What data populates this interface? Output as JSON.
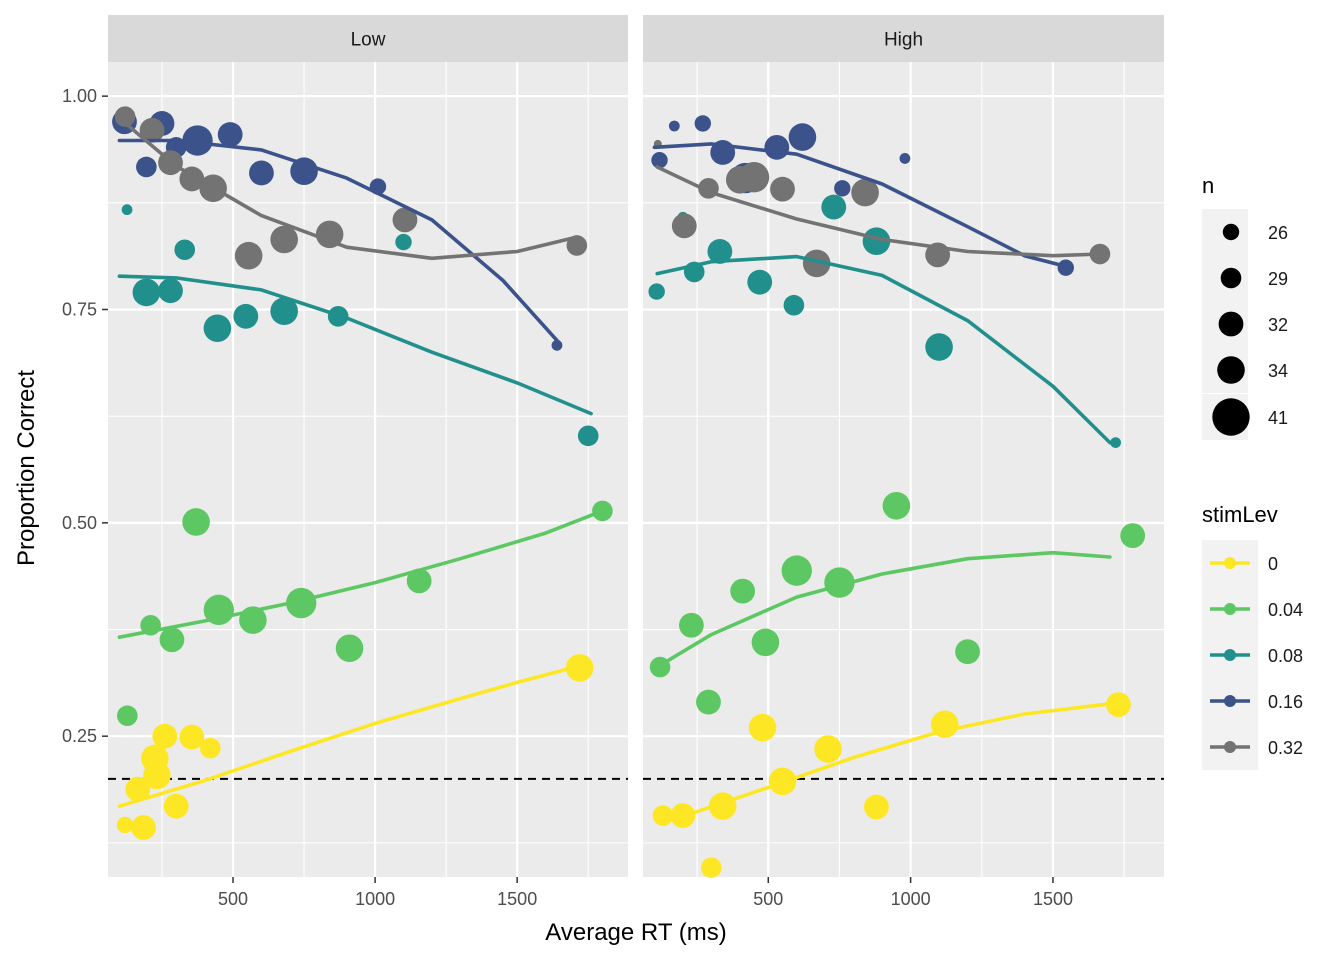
{
  "chart_data": {
    "type": "scatter",
    "xlabel": "Average RT (ms)",
    "ylabel": "Proportion Correct",
    "xlim": [
      60,
      1890
    ],
    "ylim": [
      0.085,
      1.04
    ],
    "x_ticks": [
      500,
      1000,
      1500
    ],
    "x_tick_labels": [
      "500",
      "1000",
      "1500"
    ],
    "y_ticks": [
      0.25,
      0.5,
      0.75,
      1.0
    ],
    "y_tick_labels": [
      "0.25",
      "0.50",
      "0.75",
      "1.00"
    ],
    "grid": true,
    "reference_line": {
      "y": 0.2,
      "style": "dashed",
      "color": "#000000"
    },
    "legend_placement": "right",
    "size_legend": {
      "title": "n",
      "entries": [
        {
          "label": "26",
          "value": 26
        },
        {
          "label": "29",
          "value": 29
        },
        {
          "label": "32",
          "value": 32
        },
        {
          "label": "34",
          "value": 34
        },
        {
          "label": "41",
          "value": 41
        }
      ]
    },
    "color_legend": {
      "title": "stimLev",
      "entries": [
        {
          "label": "0",
          "color": "#FDE725"
        },
        {
          "label": "0.04",
          "color": "#5DC863"
        },
        {
          "label": "0.08",
          "color": "#21908C"
        },
        {
          "label": "0.16",
          "color": "#3B528B"
        },
        {
          "label": "0.32",
          "color": "#737373"
        }
      ]
    },
    "panels": [
      {
        "label": "Low",
        "series": [
          {
            "name": "0",
            "color": "#FDE725",
            "points": [
              [
                120,
                0.146,
                26
              ],
              [
                165,
                0.188,
                32
              ],
              [
                185,
                0.143,
                32
              ],
              [
                225,
                0.224,
                34
              ],
              [
                232,
                0.204,
                34
              ],
              [
                260,
                0.25,
                32
              ],
              [
                300,
                0.168,
                32
              ],
              [
                355,
                0.249,
                32
              ],
              [
                420,
                0.236,
                29
              ],
              [
                1720,
                0.33,
                34
              ]
            ],
            "curve": [
              [
                100,
                0.168
              ],
              [
                400,
                0.198
              ],
              [
                700,
                0.232
              ],
              [
                1000,
                0.265
              ],
              [
                1300,
                0.294
              ],
              [
                1500,
                0.313
              ],
              [
                1750,
                0.335
              ]
            ]
          },
          {
            "name": "0.04",
            "color": "#5DC863",
            "points": [
              [
                128,
                0.274,
                29
              ],
              [
                210,
                0.38,
                29
              ],
              [
                285,
                0.363,
                32
              ],
              [
                370,
                0.501,
                34
              ],
              [
                450,
                0.398,
                36
              ],
              [
                570,
                0.386,
                34
              ],
              [
                740,
                0.406,
                36
              ],
              [
                910,
                0.353,
                34
              ],
              [
                1155,
                0.432,
                32
              ],
              [
                1800,
                0.514,
                29
              ]
            ],
            "curve": [
              [
                100,
                0.366
              ],
              [
                400,
                0.385
              ],
              [
                700,
                0.406
              ],
              [
                1000,
                0.43
              ],
              [
                1300,
                0.458
              ],
              [
                1600,
                0.488
              ],
              [
                1800,
                0.514
              ]
            ]
          },
          {
            "name": "0.08",
            "color": "#21908C",
            "points": [
              [
                127,
                0.867,
                22
              ],
              [
                195,
                0.77,
                34
              ],
              [
                280,
                0.772,
                32
              ],
              [
                330,
                0.82,
                29
              ],
              [
                445,
                0.728,
                34
              ],
              [
                545,
                0.742,
                32
              ],
              [
                680,
                0.748,
                34
              ],
              [
                870,
                0.742,
                29
              ],
              [
                1100,
                0.829,
                26
              ],
              [
                1750,
                0.602,
                29
              ]
            ],
            "curve": [
              [
                100,
                0.789
              ],
              [
                300,
                0.787
              ],
              [
                600,
                0.773
              ],
              [
                900,
                0.74
              ],
              [
                1200,
                0.7
              ],
              [
                1500,
                0.664
              ],
              [
                1760,
                0.628
              ]
            ]
          },
          {
            "name": "0.16",
            "color": "#3B528B",
            "points": [
              [
                118,
                0.97,
                32
              ],
              [
                195,
                0.917,
                29
              ],
              [
                250,
                0.968,
                32
              ],
              [
                300,
                0.94,
                29
              ],
              [
                375,
                0.948,
                36
              ],
              [
                490,
                0.955,
                32
              ],
              [
                600,
                0.91,
                32
              ],
              [
                750,
                0.912,
                34
              ],
              [
                1010,
                0.894,
                26
              ],
              [
                1640,
                0.708,
                22
              ]
            ],
            "curve": [
              [
                100,
                0.948
              ],
              [
                300,
                0.948
              ],
              [
                600,
                0.937
              ],
              [
                900,
                0.904
              ],
              [
                1200,
                0.855
              ],
              [
                1450,
                0.784
              ],
              [
                1650,
                0.71
              ]
            ]
          },
          {
            "name": "0.32",
            "color": "#737373",
            "points": [
              [
                120,
                0.976,
                29
              ],
              [
                215,
                0.96,
                32
              ],
              [
                280,
                0.922,
                32
              ],
              [
                355,
                0.903,
                32
              ],
              [
                430,
                0.892,
                34
              ],
              [
                555,
                0.813,
                34
              ],
              [
                680,
                0.832,
                34
              ],
              [
                840,
                0.838,
                34
              ],
              [
                1105,
                0.855,
                32
              ],
              [
                1710,
                0.825,
                29
              ]
            ],
            "curve": [
              [
                100,
                0.974
              ],
              [
                300,
                0.918
              ],
              [
                600,
                0.86
              ],
              [
                900,
                0.823
              ],
              [
                1200,
                0.81
              ],
              [
                1500,
                0.818
              ],
              [
                1700,
                0.834
              ]
            ]
          }
        ]
      },
      {
        "label": "High",
        "series": [
          {
            "name": "0",
            "color": "#FDE725",
            "points": [
              [
                130,
                0.157,
                29
              ],
              [
                200,
                0.157,
                32
              ],
              [
                300,
                0.096,
                29
              ],
              [
                340,
                0.168,
                34
              ],
              [
                480,
                0.26,
                34
              ],
              [
                550,
                0.197,
                34
              ],
              [
                710,
                0.235,
                34
              ],
              [
                880,
                0.167,
                32
              ],
              [
                1120,
                0.264,
                34
              ],
              [
                1730,
                0.287,
                32
              ]
            ],
            "curve": [
              [
                200,
                0.156
              ],
              [
                500,
                0.19
              ],
              [
                800,
                0.225
              ],
              [
                1100,
                0.255
              ],
              [
                1400,
                0.276
              ],
              [
                1700,
                0.288
              ]
            ]
          },
          {
            "name": "0.04",
            "color": "#5DC863",
            "points": [
              [
                120,
                0.331,
                29
              ],
              [
                230,
                0.38,
                32
              ],
              [
                290,
                0.29,
                32
              ],
              [
                410,
                0.42,
                32
              ],
              [
                490,
                0.36,
                34
              ],
              [
                600,
                0.444,
                36
              ],
              [
                750,
                0.43,
                36
              ],
              [
                950,
                0.52,
                34
              ],
              [
                1200,
                0.349,
                32
              ],
              [
                1780,
                0.485,
                32
              ]
            ],
            "curve": [
              [
                110,
                0.331
              ],
              [
                300,
                0.369
              ],
              [
                600,
                0.413
              ],
              [
                900,
                0.44
              ],
              [
                1200,
                0.458
              ],
              [
                1500,
                0.465
              ],
              [
                1700,
                0.46
              ]
            ]
          },
          {
            "name": "0.08",
            "color": "#21908C",
            "points": [
              [
                108,
                0.771,
                26
              ],
              [
                200,
                0.858,
                22
              ],
              [
                240,
                0.794,
                29
              ],
              [
                330,
                0.818,
                32
              ],
              [
                470,
                0.782,
                32
              ],
              [
                590,
                0.755,
                29
              ],
              [
                730,
                0.87,
                32
              ],
              [
                880,
                0.83,
                34
              ],
              [
                1100,
                0.706,
                34
              ],
              [
                1720,
                0.594,
                22
              ]
            ],
            "curve": [
              [
                110,
                0.792
              ],
              [
                300,
                0.806
              ],
              [
                600,
                0.812
              ],
              [
                900,
                0.79
              ],
              [
                1200,
                0.737
              ],
              [
                1500,
                0.66
              ],
              [
                1700,
                0.594
              ]
            ]
          },
          {
            "name": "0.16",
            "color": "#3B528B",
            "points": [
              [
                118,
                0.925,
                26
              ],
              [
                170,
                0.965,
                22
              ],
              [
                270,
                0.968,
                26
              ],
              [
                340,
                0.934,
                32
              ],
              [
                420,
                0.904,
                36
              ],
              [
                530,
                0.94,
                32
              ],
              [
                620,
                0.952,
                34
              ],
              [
                760,
                0.892,
                26
              ],
              [
                980,
                0.927,
                22
              ],
              [
                1545,
                0.799,
                26
              ]
            ],
            "curve": [
              [
                100,
                0.94
              ],
              [
                300,
                0.944
              ],
              [
                600,
                0.932
              ],
              [
                900,
                0.897
              ],
              [
                1200,
                0.847
              ],
              [
                1400,
                0.813
              ],
              [
                1550,
                0.8
              ]
            ]
          },
          {
            "name": "0.32",
            "color": "#737373",
            "points": [
              [
                112,
                0.944,
                20
              ],
              [
                205,
                0.848,
                32
              ],
              [
                290,
                0.892,
                29
              ],
              [
                400,
                0.902,
                34
              ],
              [
                450,
                0.905,
                36
              ],
              [
                550,
                0.891,
                32
              ],
              [
                670,
                0.804,
                34
              ],
              [
                840,
                0.887,
                34
              ],
              [
                1095,
                0.814,
                32
              ],
              [
                1665,
                0.815,
                29
              ]
            ],
            "curve": [
              [
                110,
                0.917
              ],
              [
                300,
                0.887
              ],
              [
                600,
                0.856
              ],
              [
                900,
                0.832
              ],
              [
                1200,
                0.818
              ],
              [
                1500,
                0.813
              ],
              [
                1670,
                0.815
              ]
            ]
          }
        ]
      }
    ]
  }
}
